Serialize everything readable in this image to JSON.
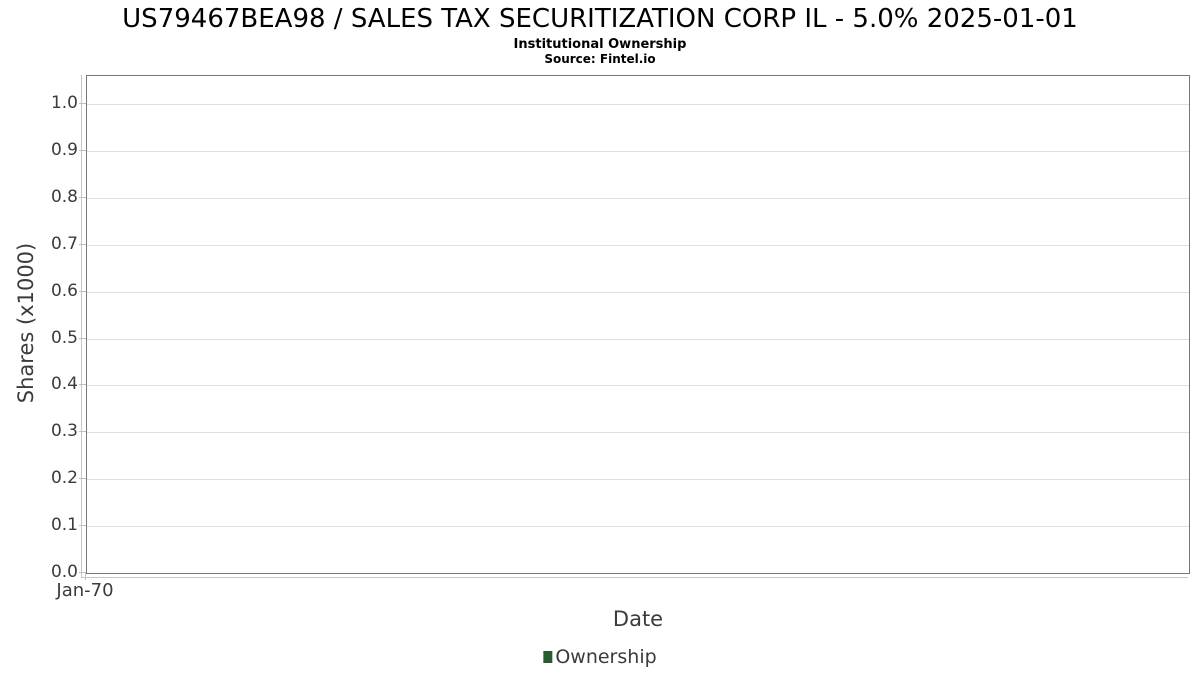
{
  "header": {
    "title": "US79467BEA98 / SALES TAX SECURITIZATION CORP IL - 5.0% 2025-01-01",
    "subtitle": "Institutional Ownership",
    "source": "Source: Fintel.io"
  },
  "chart_data": {
    "type": "line",
    "title": "US79467BEA98 / SALES TAX SECURITIZATION CORP IL - 5.0% 2025-01-01",
    "subtitle": "Institutional Ownership",
    "source_note": "Source: Fintel.io",
    "xlabel": "Date",
    "ylabel": "Shares (x1000)",
    "ylim": [
      0.0,
      1.06
    ],
    "yticks": [
      0.0,
      0.1,
      0.2,
      0.3,
      0.4,
      0.5,
      0.6,
      0.7,
      0.8,
      0.9,
      1.0
    ],
    "ytick_labels": [
      "0.0",
      "0.1",
      "0.2",
      "0.3",
      "0.4",
      "0.5",
      "0.6",
      "0.7",
      "0.8",
      "0.9",
      "1.0"
    ],
    "xticks": [
      "Jan-70"
    ],
    "grid": true,
    "legend_position": "bottom",
    "series": [
      {
        "name": "Ownership",
        "color": "#275c2e",
        "x": [],
        "values": []
      }
    ]
  }
}
